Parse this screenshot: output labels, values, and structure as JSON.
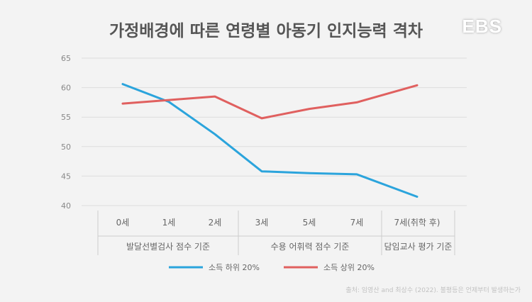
{
  "title": "가정배경에 따른 연령별 아동기 인지능력 격차",
  "logo_text": "EBS",
  "source": "출처: 임영산 and 최상수 (2022). 불평등은 언제부터 발생하는가",
  "colors": {
    "low_income": "#2ba4dc",
    "high_income": "#e0605f",
    "grid": "#dddddd",
    "axis_text": "#666666",
    "title": "#555555",
    "background": "#f3f3f3"
  },
  "chart_data": {
    "type": "line",
    "title": "가정배경에 따른 연령별 아동기 인지능력 격차",
    "categories": [
      "0세",
      "1세",
      "2세",
      "3세",
      "5세",
      "7세",
      "7세(취학 후)"
    ],
    "groups": [
      {
        "label": "발달선별검사 점수 기준",
        "start": 0,
        "end": 2
      },
      {
        "label": "수용 어휘력 점수 기준",
        "start": 3,
        "end": 5
      },
      {
        "label": "담임교사 평가 기준",
        "start": 6,
        "end": 6
      }
    ],
    "series": [
      {
        "name": "소득 하위 20%",
        "color": "#2ba4dc",
        "values": [
          60.6,
          57.6,
          52.1,
          45.8,
          45.5,
          45.3,
          41.5
        ]
      },
      {
        "name": "소득 상위 20%",
        "color": "#e0605f",
        "values": [
          57.3,
          57.9,
          58.5,
          54.8,
          56.4,
          57.5,
          60.4
        ]
      }
    ],
    "yticks": [
      40,
      45,
      50,
      55,
      60,
      65
    ],
    "ylim": [
      40,
      65
    ],
    "grid": true,
    "legend": "bottom-center"
  }
}
